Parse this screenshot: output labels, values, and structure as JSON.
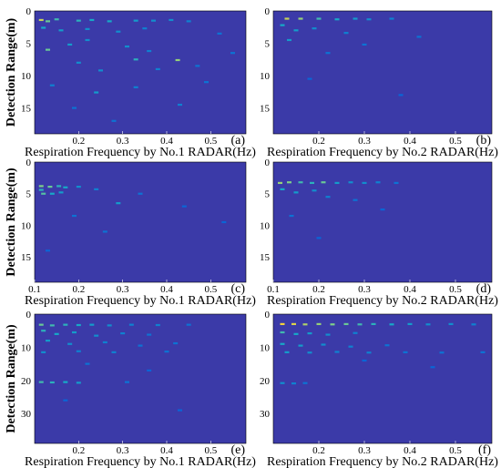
{
  "chart_data": [
    {
      "id": "a",
      "type": "heatmap",
      "panel_letter": "(a)",
      "xlabel": "Respiration Frequency by No.1 RADAR(Hz)",
      "ylabel": "Detection Range(m)",
      "xlim": [
        0.1,
        0.58
      ],
      "ylim": [
        0,
        19
      ],
      "xticks": [
        "0.2",
        "0.3",
        "0.4",
        "0.5"
      ],
      "yticks": [
        "0",
        "5",
        "10",
        "15"
      ],
      "colormap": [
        "#3b3aa8",
        "#0a66d6",
        "#17a9c7",
        "#7fd089",
        "#f2d23b"
      ],
      "hotspots": [
        {
          "f": 0.115,
          "r": 1.4,
          "v": 0.9
        },
        {
          "f": 0.13,
          "r": 1.6,
          "v": 0.7
        },
        {
          "f": 0.15,
          "r": 1.3,
          "v": 0.6
        },
        {
          "f": 0.2,
          "r": 1.5,
          "v": 0.55
        },
        {
          "f": 0.23,
          "r": 1.4,
          "v": 0.5
        },
        {
          "f": 0.27,
          "r": 1.6,
          "v": 0.5
        },
        {
          "f": 0.33,
          "r": 1.5,
          "v": 0.45
        },
        {
          "f": 0.37,
          "r": 1.5,
          "v": 0.4
        },
        {
          "f": 0.41,
          "r": 1.4,
          "v": 0.4
        },
        {
          "f": 0.45,
          "r": 1.6,
          "v": 0.35
        },
        {
          "f": 0.12,
          "r": 2.6,
          "v": 0.5
        },
        {
          "f": 0.16,
          "r": 3.0,
          "v": 0.45
        },
        {
          "f": 0.22,
          "r": 2.8,
          "v": 0.4
        },
        {
          "f": 0.29,
          "r": 3.2,
          "v": 0.4
        },
        {
          "f": 0.35,
          "r": 2.7,
          "v": 0.35
        },
        {
          "f": 0.13,
          "r": 6.0,
          "v": 0.7
        },
        {
          "f": 0.18,
          "r": 5.2,
          "v": 0.45
        },
        {
          "f": 0.22,
          "r": 4.5,
          "v": 0.4
        },
        {
          "f": 0.31,
          "r": 5.5,
          "v": 0.4
        },
        {
          "f": 0.36,
          "r": 6.2,
          "v": 0.35
        },
        {
          "f": 0.425,
          "r": 7.6,
          "v": 0.8
        },
        {
          "f": 0.33,
          "r": 7.5,
          "v": 0.55
        },
        {
          "f": 0.2,
          "r": 8.0,
          "v": 0.4
        },
        {
          "f": 0.25,
          "r": 9.2,
          "v": 0.4
        },
        {
          "f": 0.38,
          "r": 9.0,
          "v": 0.35
        },
        {
          "f": 0.47,
          "r": 8.5,
          "v": 0.3
        },
        {
          "f": 0.24,
          "r": 12.6,
          "v": 0.45
        },
        {
          "f": 0.14,
          "r": 11.5,
          "v": 0.35
        },
        {
          "f": 0.33,
          "r": 11.8,
          "v": 0.35
        },
        {
          "f": 0.43,
          "r": 14.5,
          "v": 0.35
        },
        {
          "f": 0.19,
          "r": 15.0,
          "v": 0.3
        },
        {
          "f": 0.28,
          "r": 17.0,
          "v": 0.3
        },
        {
          "f": 0.52,
          "r": 3.5,
          "v": 0.3
        },
        {
          "f": 0.55,
          "r": 6.5,
          "v": 0.3
        },
        {
          "f": 0.49,
          "r": 11.0,
          "v": 0.3
        }
      ]
    },
    {
      "id": "b",
      "type": "heatmap",
      "panel_letter": "(b)",
      "xlabel": "Respiration Frequency by No.2 RADAR(Hz)",
      "ylabel": "",
      "xlim": [
        0.1,
        0.58
      ],
      "ylim": [
        0,
        19
      ],
      "xticks": [
        "0.2",
        "0.3",
        "0.4",
        "0.5"
      ],
      "yticks": [
        "0",
        "5",
        "10",
        "15"
      ],
      "colormap": [
        "#3b3aa8",
        "#0a66d6",
        "#17a9c7",
        "#7fd089",
        "#f2d23b"
      ],
      "hotspots": [
        {
          "f": 0.13,
          "r": 1.2,
          "v": 0.9
        },
        {
          "f": 0.16,
          "r": 1.2,
          "v": 0.8
        },
        {
          "f": 0.2,
          "r": 1.2,
          "v": 0.6
        },
        {
          "f": 0.24,
          "r": 1.3,
          "v": 0.5
        },
        {
          "f": 0.28,
          "r": 1.2,
          "v": 0.45
        },
        {
          "f": 0.31,
          "r": 1.3,
          "v": 0.4
        },
        {
          "f": 0.36,
          "r": 1.2,
          "v": 0.35
        },
        {
          "f": 0.12,
          "r": 2.2,
          "v": 0.5
        },
        {
          "f": 0.15,
          "r": 3.0,
          "v": 0.45
        },
        {
          "f": 0.19,
          "r": 2.7,
          "v": 0.4
        },
        {
          "f": 0.26,
          "r": 3.4,
          "v": 0.35
        },
        {
          "f": 0.135,
          "r": 4.5,
          "v": 0.45
        },
        {
          "f": 0.3,
          "r": 5.2,
          "v": 0.3
        },
        {
          "f": 0.22,
          "r": 6.5,
          "v": 0.3
        },
        {
          "f": 0.42,
          "r": 4.0,
          "v": 0.3
        },
        {
          "f": 0.18,
          "r": 10.5,
          "v": 0.25
        },
        {
          "f": 0.38,
          "r": 13.0,
          "v": 0.25
        }
      ]
    },
    {
      "id": "c",
      "type": "heatmap",
      "panel_letter": "(c)",
      "xlabel": "Respiration Frequency by No.1 RADAR(Hz)",
      "ylabel": "Detection Range(m)",
      "xlim": [
        0.1,
        0.58
      ],
      "ylim": [
        0,
        19
      ],
      "xticks": [
        "0.1",
        "0.2",
        "0.3",
        "0.4",
        "0.5"
      ],
      "yticks": [
        "0",
        "5",
        "10",
        "15"
      ],
      "colormap": [
        "#3b3aa8",
        "#0a66d6",
        "#17a9c7",
        "#7fd089",
        "#f2d23b"
      ],
      "hotspots": [
        {
          "f": 0.115,
          "r": 3.8,
          "v": 0.75
        },
        {
          "f": 0.135,
          "r": 3.9,
          "v": 0.7
        },
        {
          "f": 0.155,
          "r": 3.8,
          "v": 0.55
        },
        {
          "f": 0.17,
          "r": 4.0,
          "v": 0.5
        },
        {
          "f": 0.2,
          "r": 3.9,
          "v": 0.4
        },
        {
          "f": 0.12,
          "r": 5.0,
          "v": 0.65
        },
        {
          "f": 0.14,
          "r": 5.0,
          "v": 0.5
        },
        {
          "f": 0.16,
          "r": 4.8,
          "v": 0.45
        },
        {
          "f": 0.115,
          "r": 4.4,
          "v": 0.55
        },
        {
          "f": 0.24,
          "r": 4.3,
          "v": 0.35
        },
        {
          "f": 0.29,
          "r": 6.5,
          "v": 0.45
        },
        {
          "f": 0.34,
          "r": 5.0,
          "v": 0.3
        },
        {
          "f": 0.19,
          "r": 8.5,
          "v": 0.3
        },
        {
          "f": 0.26,
          "r": 11.0,
          "v": 0.3
        },
        {
          "f": 0.44,
          "r": 7.0,
          "v": 0.25
        },
        {
          "f": 0.53,
          "r": 9.5,
          "v": 0.25
        },
        {
          "f": 0.13,
          "r": 14.0,
          "v": 0.25
        }
      ]
    },
    {
      "id": "d",
      "type": "heatmap",
      "panel_letter": "(d)",
      "xlabel": "Respiration Frequency by No.2 RADAR(Hz)",
      "ylabel": "",
      "xlim": [
        0.1,
        0.58
      ],
      "ylim": [
        0,
        19
      ],
      "xticks": [
        "0.1",
        "0.2",
        "0.3",
        "0.4",
        "0.5"
      ],
      "yticks": [
        "0",
        "5",
        "10",
        "15"
      ],
      "colormap": [
        "#3b3aa8",
        "#0a66d6",
        "#17a9c7",
        "#7fd089",
        "#f2d23b"
      ],
      "hotspots": [
        {
          "f": 0.115,
          "r": 3.3,
          "v": 0.8
        },
        {
          "f": 0.135,
          "r": 3.2,
          "v": 0.75
        },
        {
          "f": 0.16,
          "r": 3.2,
          "v": 0.6
        },
        {
          "f": 0.185,
          "r": 3.3,
          "v": 0.55
        },
        {
          "f": 0.21,
          "r": 3.2,
          "v": 0.7
        },
        {
          "f": 0.24,
          "r": 3.3,
          "v": 0.45
        },
        {
          "f": 0.27,
          "r": 3.2,
          "v": 0.4
        },
        {
          "f": 0.3,
          "r": 3.3,
          "v": 0.4
        },
        {
          "f": 0.33,
          "r": 3.2,
          "v": 0.35
        },
        {
          "f": 0.37,
          "r": 3.3,
          "v": 0.3
        },
        {
          "f": 0.12,
          "r": 4.3,
          "v": 0.5
        },
        {
          "f": 0.15,
          "r": 4.8,
          "v": 0.45
        },
        {
          "f": 0.19,
          "r": 4.5,
          "v": 0.4
        },
        {
          "f": 0.22,
          "r": 5.5,
          "v": 0.35
        },
        {
          "f": 0.28,
          "r": 6.0,
          "v": 0.3
        },
        {
          "f": 0.14,
          "r": 8.5,
          "v": 0.3
        },
        {
          "f": 0.34,
          "r": 7.5,
          "v": 0.25
        },
        {
          "f": 0.2,
          "r": 12.0,
          "v": 0.25
        }
      ]
    },
    {
      "id": "e",
      "type": "heatmap",
      "panel_letter": "(e)",
      "xlabel": "Respiration Frequency by No.1 RADAR(Hz)",
      "ylabel": "Detection Range(m)",
      "xlim": [
        0.1,
        0.58
      ],
      "ylim": [
        0,
        39
      ],
      "xticks": [
        "0.2",
        "0.3",
        "0.4",
        "0.5"
      ],
      "yticks": [
        "0",
        "10",
        "20",
        "30"
      ],
      "colormap": [
        "#3b3aa8",
        "#0a66d6",
        "#17a9c7",
        "#7fd089",
        "#f2d23b"
      ],
      "hotspots": [
        {
          "f": 0.115,
          "r": 3.2,
          "v": 0.7
        },
        {
          "f": 0.14,
          "r": 3.4,
          "v": 0.6
        },
        {
          "f": 0.17,
          "r": 3.2,
          "v": 0.55
        },
        {
          "f": 0.2,
          "r": 3.3,
          "v": 0.5
        },
        {
          "f": 0.23,
          "r": 3.2,
          "v": 0.45
        },
        {
          "f": 0.27,
          "r": 3.4,
          "v": 0.4
        },
        {
          "f": 0.32,
          "r": 3.2,
          "v": 0.35
        },
        {
          "f": 0.38,
          "r": 3.3,
          "v": 0.35
        },
        {
          "f": 0.45,
          "r": 3.2,
          "v": 0.3
        },
        {
          "f": 0.12,
          "r": 5.0,
          "v": 0.55
        },
        {
          "f": 0.15,
          "r": 6.0,
          "v": 0.5
        },
        {
          "f": 0.19,
          "r": 5.5,
          "v": 0.45
        },
        {
          "f": 0.24,
          "r": 6.5,
          "v": 0.4
        },
        {
          "f": 0.3,
          "r": 5.8,
          "v": 0.35
        },
        {
          "f": 0.36,
          "r": 6.2,
          "v": 0.3
        },
        {
          "f": 0.13,
          "r": 8.0,
          "v": 0.45
        },
        {
          "f": 0.18,
          "r": 9.0,
          "v": 0.4
        },
        {
          "f": 0.26,
          "r": 8.5,
          "v": 0.35
        },
        {
          "f": 0.34,
          "r": 9.5,
          "v": 0.3
        },
        {
          "f": 0.42,
          "r": 8.8,
          "v": 0.3
        },
        {
          "f": 0.12,
          "r": 11.5,
          "v": 0.4
        },
        {
          "f": 0.2,
          "r": 11.2,
          "v": 0.35
        },
        {
          "f": 0.28,
          "r": 11.5,
          "v": 0.35
        },
        {
          "f": 0.4,
          "r": 11.3,
          "v": 0.3
        },
        {
          "f": 0.115,
          "r": 20.5,
          "v": 0.6
        },
        {
          "f": 0.14,
          "r": 20.6,
          "v": 0.55
        },
        {
          "f": 0.17,
          "r": 20.5,
          "v": 0.5
        },
        {
          "f": 0.2,
          "r": 20.7,
          "v": 0.45
        },
        {
          "f": 0.31,
          "r": 20.5,
          "v": 0.3
        },
        {
          "f": 0.22,
          "r": 15.0,
          "v": 0.3
        },
        {
          "f": 0.36,
          "r": 17.0,
          "v": 0.25
        },
        {
          "f": 0.17,
          "r": 26.0,
          "v": 0.25
        },
        {
          "f": 0.43,
          "r": 29.0,
          "v": 0.25
        }
      ]
    },
    {
      "id": "f",
      "type": "heatmap",
      "panel_letter": "(f)",
      "xlabel": "Respiration Frequency by No.2 RADAR(Hz)",
      "ylabel": "",
      "xlim": [
        0.1,
        0.58
      ],
      "ylim": [
        0,
        39
      ],
      "xticks": [
        "0.2",
        "0.3",
        "0.4",
        "0.5"
      ],
      "yticks": [
        "0",
        "10",
        "20",
        "30"
      ],
      "colormap": [
        "#3b3aa8",
        "#0a66d6",
        "#17a9c7",
        "#7fd089",
        "#f2d23b"
      ],
      "hotspots": [
        {
          "f": 0.12,
          "r": 3.0,
          "v": 1.0
        },
        {
          "f": 0.145,
          "r": 3.0,
          "v": 0.95
        },
        {
          "f": 0.17,
          "r": 3.1,
          "v": 0.85
        },
        {
          "f": 0.2,
          "r": 3.0,
          "v": 0.8
        },
        {
          "f": 0.23,
          "r": 3.1,
          "v": 0.75
        },
        {
          "f": 0.26,
          "r": 3.0,
          "v": 0.7
        },
        {
          "f": 0.29,
          "r": 3.1,
          "v": 0.6
        },
        {
          "f": 0.32,
          "r": 3.0,
          "v": 0.55
        },
        {
          "f": 0.36,
          "r": 3.1,
          "v": 0.5
        },
        {
          "f": 0.4,
          "r": 3.0,
          "v": 0.45
        },
        {
          "f": 0.44,
          "r": 3.1,
          "v": 0.4
        },
        {
          "f": 0.49,
          "r": 3.0,
          "v": 0.4
        },
        {
          "f": 0.54,
          "r": 3.1,
          "v": 0.35
        },
        {
          "f": 0.12,
          "r": 5.5,
          "v": 0.6
        },
        {
          "f": 0.15,
          "r": 6.0,
          "v": 0.5
        },
        {
          "f": 0.18,
          "r": 5.8,
          "v": 0.45
        },
        {
          "f": 0.22,
          "r": 6.2,
          "v": 0.4
        },
        {
          "f": 0.28,
          "r": 5.7,
          "v": 0.35
        },
        {
          "f": 0.12,
          "r": 9.0,
          "v": 0.5
        },
        {
          "f": 0.16,
          "r": 9.5,
          "v": 0.45
        },
        {
          "f": 0.21,
          "r": 9.2,
          "v": 0.4
        },
        {
          "f": 0.27,
          "r": 9.8,
          "v": 0.35
        },
        {
          "f": 0.35,
          "r": 9.4,
          "v": 0.3
        },
        {
          "f": 0.13,
          "r": 11.5,
          "v": 0.45
        },
        {
          "f": 0.18,
          "r": 11.6,
          "v": 0.4
        },
        {
          "f": 0.24,
          "r": 11.4,
          "v": 0.35
        },
        {
          "f": 0.31,
          "r": 11.6,
          "v": 0.35
        },
        {
          "f": 0.39,
          "r": 11.5,
          "v": 0.3
        },
        {
          "f": 0.47,
          "r": 11.6,
          "v": 0.3
        },
        {
          "f": 0.56,
          "r": 11.5,
          "v": 0.3
        },
        {
          "f": 0.12,
          "r": 20.8,
          "v": 0.4
        },
        {
          "f": 0.145,
          "r": 20.9,
          "v": 0.35
        },
        {
          "f": 0.17,
          "r": 20.8,
          "v": 0.3
        },
        {
          "f": 0.3,
          "r": 14.0,
          "v": 0.25
        },
        {
          "f": 0.45,
          "r": 16.0,
          "v": 0.25
        }
      ]
    }
  ]
}
